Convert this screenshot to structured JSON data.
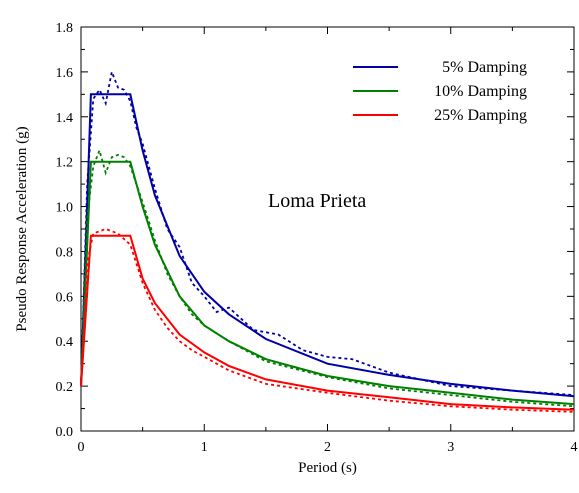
{
  "chart_data": {
    "type": "line",
    "title": "",
    "xlabel": "Period (s)",
    "ylabel": "Pseudo Response Acceleration (g)",
    "xlim": [
      0,
      4
    ],
    "ylim": [
      0,
      1.8
    ],
    "x_ticks": [
      "0",
      "1",
      "2",
      "3",
      "4"
    ],
    "y_ticks": [
      "0.0",
      "0.2",
      "0.4",
      "0.6",
      "0.8",
      "1.0",
      "1.2",
      "1.4",
      "1.6",
      "1.8"
    ],
    "annotation": "Loma Prieta",
    "legend_position": "top-right",
    "grid": false,
    "series": [
      {
        "name": "5% Damping",
        "color": "#0000a8",
        "smooth": [
          [
            0,
            0.2
          ],
          [
            0.08,
            1.5
          ],
          [
            0.4,
            1.5
          ],
          [
            0.5,
            1.25
          ],
          [
            0.6,
            1.05
          ],
          [
            0.8,
            0.78
          ],
          [
            1.0,
            0.62
          ],
          [
            1.2,
            0.52
          ],
          [
            1.5,
            0.41
          ],
          [
            2.0,
            0.3
          ],
          [
            2.5,
            0.25
          ],
          [
            3.0,
            0.21
          ],
          [
            3.5,
            0.18
          ],
          [
            4.0,
            0.155
          ]
        ],
        "measured": [
          [
            0,
            0.2
          ],
          [
            0.05,
            1.1
          ],
          [
            0.1,
            1.48
          ],
          [
            0.15,
            1.52
          ],
          [
            0.2,
            1.46
          ],
          [
            0.25,
            1.6
          ],
          [
            0.3,
            1.53
          ],
          [
            0.35,
            1.52
          ],
          [
            0.4,
            1.47
          ],
          [
            0.45,
            1.35
          ],
          [
            0.5,
            1.28
          ],
          [
            0.6,
            1.08
          ],
          [
            0.7,
            0.9
          ],
          [
            0.8,
            0.82
          ],
          [
            0.9,
            0.66
          ],
          [
            1.0,
            0.6
          ],
          [
            1.1,
            0.53
          ],
          [
            1.2,
            0.55
          ],
          [
            1.4,
            0.45
          ],
          [
            1.6,
            0.43
          ],
          [
            1.8,
            0.36
          ],
          [
            2.0,
            0.33
          ],
          [
            2.2,
            0.32
          ],
          [
            2.5,
            0.26
          ],
          [
            3.0,
            0.2
          ],
          [
            3.5,
            0.18
          ],
          [
            4.0,
            0.16
          ]
        ]
      },
      {
        "name": "10% Damping",
        "color": "#008000",
        "smooth": [
          [
            0,
            0.2
          ],
          [
            0.08,
            1.2
          ],
          [
            0.4,
            1.2
          ],
          [
            0.5,
            1.0
          ],
          [
            0.6,
            0.83
          ],
          [
            0.8,
            0.6
          ],
          [
            1.0,
            0.47
          ],
          [
            1.2,
            0.4
          ],
          [
            1.5,
            0.32
          ],
          [
            2.0,
            0.245
          ],
          [
            2.5,
            0.2
          ],
          [
            3.0,
            0.17
          ],
          [
            3.5,
            0.14
          ],
          [
            4.0,
            0.12
          ]
        ],
        "measured": [
          [
            0,
            0.2
          ],
          [
            0.05,
            0.95
          ],
          [
            0.1,
            1.18
          ],
          [
            0.15,
            1.25
          ],
          [
            0.2,
            1.15
          ],
          [
            0.25,
            1.22
          ],
          [
            0.3,
            1.23
          ],
          [
            0.35,
            1.22
          ],
          [
            0.4,
            1.18
          ],
          [
            0.5,
            1.02
          ],
          [
            0.6,
            0.85
          ],
          [
            0.7,
            0.7
          ],
          [
            0.8,
            0.6
          ],
          [
            0.9,
            0.52
          ],
          [
            1.0,
            0.47
          ],
          [
            1.2,
            0.4
          ],
          [
            1.5,
            0.31
          ],
          [
            2.0,
            0.24
          ],
          [
            2.5,
            0.19
          ],
          [
            3.0,
            0.16
          ],
          [
            3.5,
            0.13
          ],
          [
            4.0,
            0.11
          ]
        ]
      },
      {
        "name": "25% Damping",
        "color": "#ff0000",
        "smooth": [
          [
            0,
            0.2
          ],
          [
            0.08,
            0.87
          ],
          [
            0.4,
            0.87
          ],
          [
            0.5,
            0.68
          ],
          [
            0.6,
            0.57
          ],
          [
            0.8,
            0.43
          ],
          [
            1.0,
            0.35
          ],
          [
            1.2,
            0.29
          ],
          [
            1.5,
            0.23
          ],
          [
            2.0,
            0.18
          ],
          [
            2.5,
            0.15
          ],
          [
            3.0,
            0.12
          ],
          [
            3.5,
            0.105
          ],
          [
            4.0,
            0.095
          ]
        ],
        "measured": [
          [
            0,
            0.2
          ],
          [
            0.05,
            0.75
          ],
          [
            0.1,
            0.88
          ],
          [
            0.2,
            0.9
          ],
          [
            0.3,
            0.88
          ],
          [
            0.4,
            0.83
          ],
          [
            0.5,
            0.66
          ],
          [
            0.6,
            0.54
          ],
          [
            0.7,
            0.46
          ],
          [
            0.8,
            0.4
          ],
          [
            0.9,
            0.36
          ],
          [
            1.0,
            0.33
          ],
          [
            1.2,
            0.27
          ],
          [
            1.5,
            0.21
          ],
          [
            2.0,
            0.17
          ],
          [
            2.5,
            0.135
          ],
          [
            3.0,
            0.11
          ],
          [
            3.5,
            0.095
          ],
          [
            4.0,
            0.085
          ]
        ]
      }
    ]
  }
}
